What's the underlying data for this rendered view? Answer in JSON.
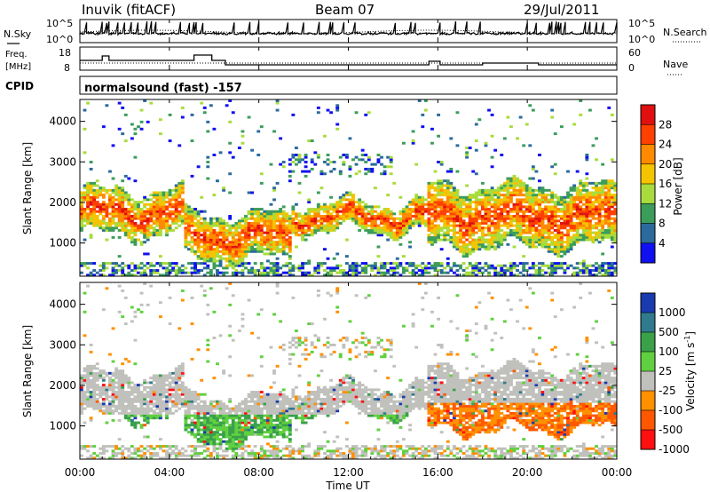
{
  "header": {
    "station": "Inuvik (fitACF)",
    "beam": "Beam 07",
    "date": "29/Jul/2011"
  },
  "strip": {
    "nsky_label": "N.Sky",
    "nsearch_label": "N.Search",
    "freq_label_line1": "Freq.",
    "freq_label_line2": "[MHz]",
    "nave_label": "Nave",
    "cpid_label": "CPID",
    "cpid_value": "normalsound (fast) -157",
    "noise_left_ticks": [
      "10^5",
      "10^0"
    ],
    "noise_right_ticks": [
      "10^5",
      "10^0"
    ],
    "freq_left_ticks": [
      "18",
      "8"
    ],
    "nave_right_ticks": [
      "60",
      "0"
    ]
  },
  "chart_data": [
    {
      "type": "heatmap",
      "name": "Power",
      "ylabel": "Slant Range [km]",
      "xlabel": "Time UT",
      "ylim": [
        180,
        4540
      ],
      "x_ticks": [
        "00:00",
        "04:00",
        "08:00",
        "12:00",
        "16:00",
        "20:00",
        "00:00"
      ],
      "y_ticks": [
        1000,
        2000,
        3000,
        4000
      ],
      "colorbar": {
        "label": "Power [dB]",
        "ticks": [
          "28",
          "24",
          "20",
          "16",
          "12",
          "8",
          "4"
        ],
        "colors": [
          "#e01010",
          "#ff4000",
          "#ff8a00",
          "#f4c400",
          "#a8dc3c",
          "#3c9c5a",
          "#2a6a9c",
          "#1010f0"
        ]
      },
      "bands": [
        {
          "start_hour": 0.0,
          "end_hour": 4.6,
          "low_km": 1200,
          "high_km": 2300
        },
        {
          "start_hour": 4.6,
          "end_hour": 9.5,
          "low_km": 600,
          "high_km": 1700
        },
        {
          "start_hour": 9.5,
          "end_hour": 15.5,
          "low_km": 1300,
          "high_km": 2000
        },
        {
          "start_hour": 15.5,
          "end_hour": 24.0,
          "low_km": 900,
          "high_km": 2400
        }
      ]
    },
    {
      "type": "heatmap",
      "name": "Velocity",
      "ylabel": "Slant Range [km]",
      "xlabel": "Time UT",
      "ylim": [
        180,
        4540
      ],
      "x_ticks": [
        "00:00",
        "04:00",
        "08:00",
        "12:00",
        "16:00",
        "20:00",
        "00:00"
      ],
      "y_ticks": [
        1000,
        2000,
        3000,
        4000
      ],
      "colorbar": {
        "label": "Velocity [m s",
        "label_sup": "-1",
        "label_end": "]",
        "ticks": [
          "1000",
          "500",
          "100",
          "25",
          "-25",
          "-100",
          "-500",
          "-1000"
        ],
        "colors": [
          "#1a3ab0",
          "#2f7a8c",
          "#3aa04a",
          "#60d040",
          "#c0c0bc",
          "#ff9000",
          "#ff5800",
          "#ff1010"
        ]
      }
    }
  ]
}
